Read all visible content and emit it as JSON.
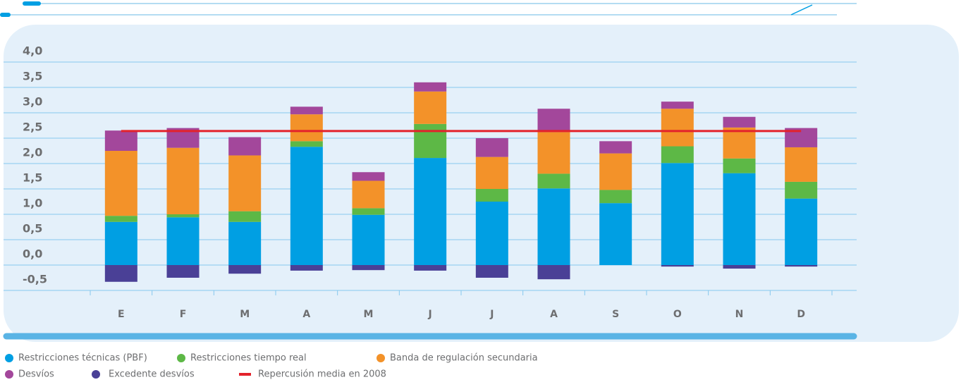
{
  "chart_data": {
    "type": "stacked-bar",
    "categories": [
      "E",
      "F",
      "M",
      "A",
      "M",
      "J",
      "J",
      "A",
      "S",
      "O",
      "N",
      "D"
    ],
    "series": [
      {
        "name": "Restricciones técnicas (PBF)",
        "color": "#009fe3",
        "values": [
          0.85,
          0.94,
          0.85,
          2.33,
          0.99,
          2.11,
          1.25,
          1.51,
          1.22,
          2.01,
          1.81,
          1.31
        ]
      },
      {
        "name": "Restricciones tiempo real",
        "color": "#5db846",
        "values": [
          0.12,
          0.06,
          0.21,
          0.11,
          0.13,
          0.67,
          0.25,
          0.29,
          0.26,
          0.33,
          0.29,
          0.33
        ]
      },
      {
        "name": "Banda de regulación secundaria",
        "color": "#f39229",
        "values": [
          1.28,
          1.31,
          1.1,
          0.53,
          0.54,
          0.64,
          0.63,
          0.82,
          0.72,
          0.74,
          0.61,
          0.68
        ]
      },
      {
        "name": "Desvíos",
        "color": "#a3479b",
        "values": [
          0.4,
          0.39,
          0.36,
          0.15,
          0.17,
          0.18,
          0.37,
          0.46,
          0.24,
          0.14,
          0.21,
          0.38
        ]
      },
      {
        "name": "Excedente desvíos",
        "color": "#4a4096",
        "values": [
          -0.33,
          -0.25,
          -0.17,
          -0.11,
          -0.1,
          -0.11,
          -0.25,
          -0.28,
          0,
          -0.03,
          -0.07,
          -0.03
        ]
      }
    ],
    "reference": {
      "name": "Repercusión media en 2008",
      "color": "#e3222b",
      "value": 2.64
    },
    "ylim": [
      -0.5,
      4.0
    ],
    "yticks": [
      {
        "value": -0.5,
        "label": "-0,5"
      },
      {
        "value": 0,
        "label": "0,0"
      },
      {
        "value": 0.5,
        "label": "0,5"
      },
      {
        "value": 1,
        "label": "1,0"
      },
      {
        "value": 1.5,
        "label": "1,5"
      },
      {
        "value": 2,
        "label": "2,0"
      },
      {
        "value": 2.5,
        "label": "2,5"
      },
      {
        "value": 3,
        "label": "3,0"
      },
      {
        "value": 3.5,
        "label": "3,5"
      },
      {
        "value": 4,
        "label": "4,0"
      }
    ],
    "grid": true
  }
}
